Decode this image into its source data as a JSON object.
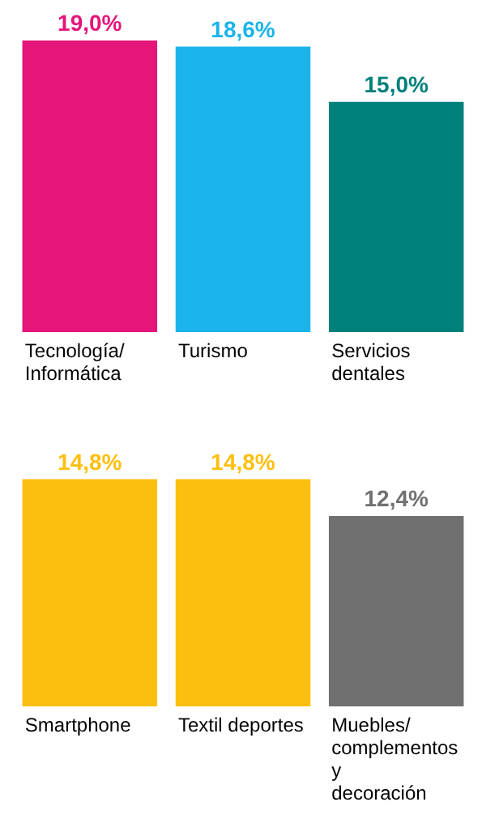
{
  "chart_data": [
    {
      "type": "bar",
      "categories": [
        "Tecnología/\nInformática",
        "Turismo",
        "Servicios\ndentales"
      ],
      "values": [
        19.0,
        18.6,
        15.0
      ],
      "colors": [
        "#e5157a",
        "#1ab4ea",
        "#00807a"
      ],
      "value_labels": [
        "19,0%",
        "18,6%",
        "15,0%"
      ]
    },
    {
      "type": "bar",
      "categories": [
        "Smartphone",
        "Textil deportes",
        "Muebles/\ncomplementos\ny\ndecoración"
      ],
      "values": [
        14.8,
        14.8,
        12.4
      ],
      "colors": [
        "#fdbf0f",
        "#fdbf0f",
        "#707070"
      ],
      "value_labels": [
        "14,8%",
        "14,8%",
        "12,4%"
      ]
    }
  ]
}
